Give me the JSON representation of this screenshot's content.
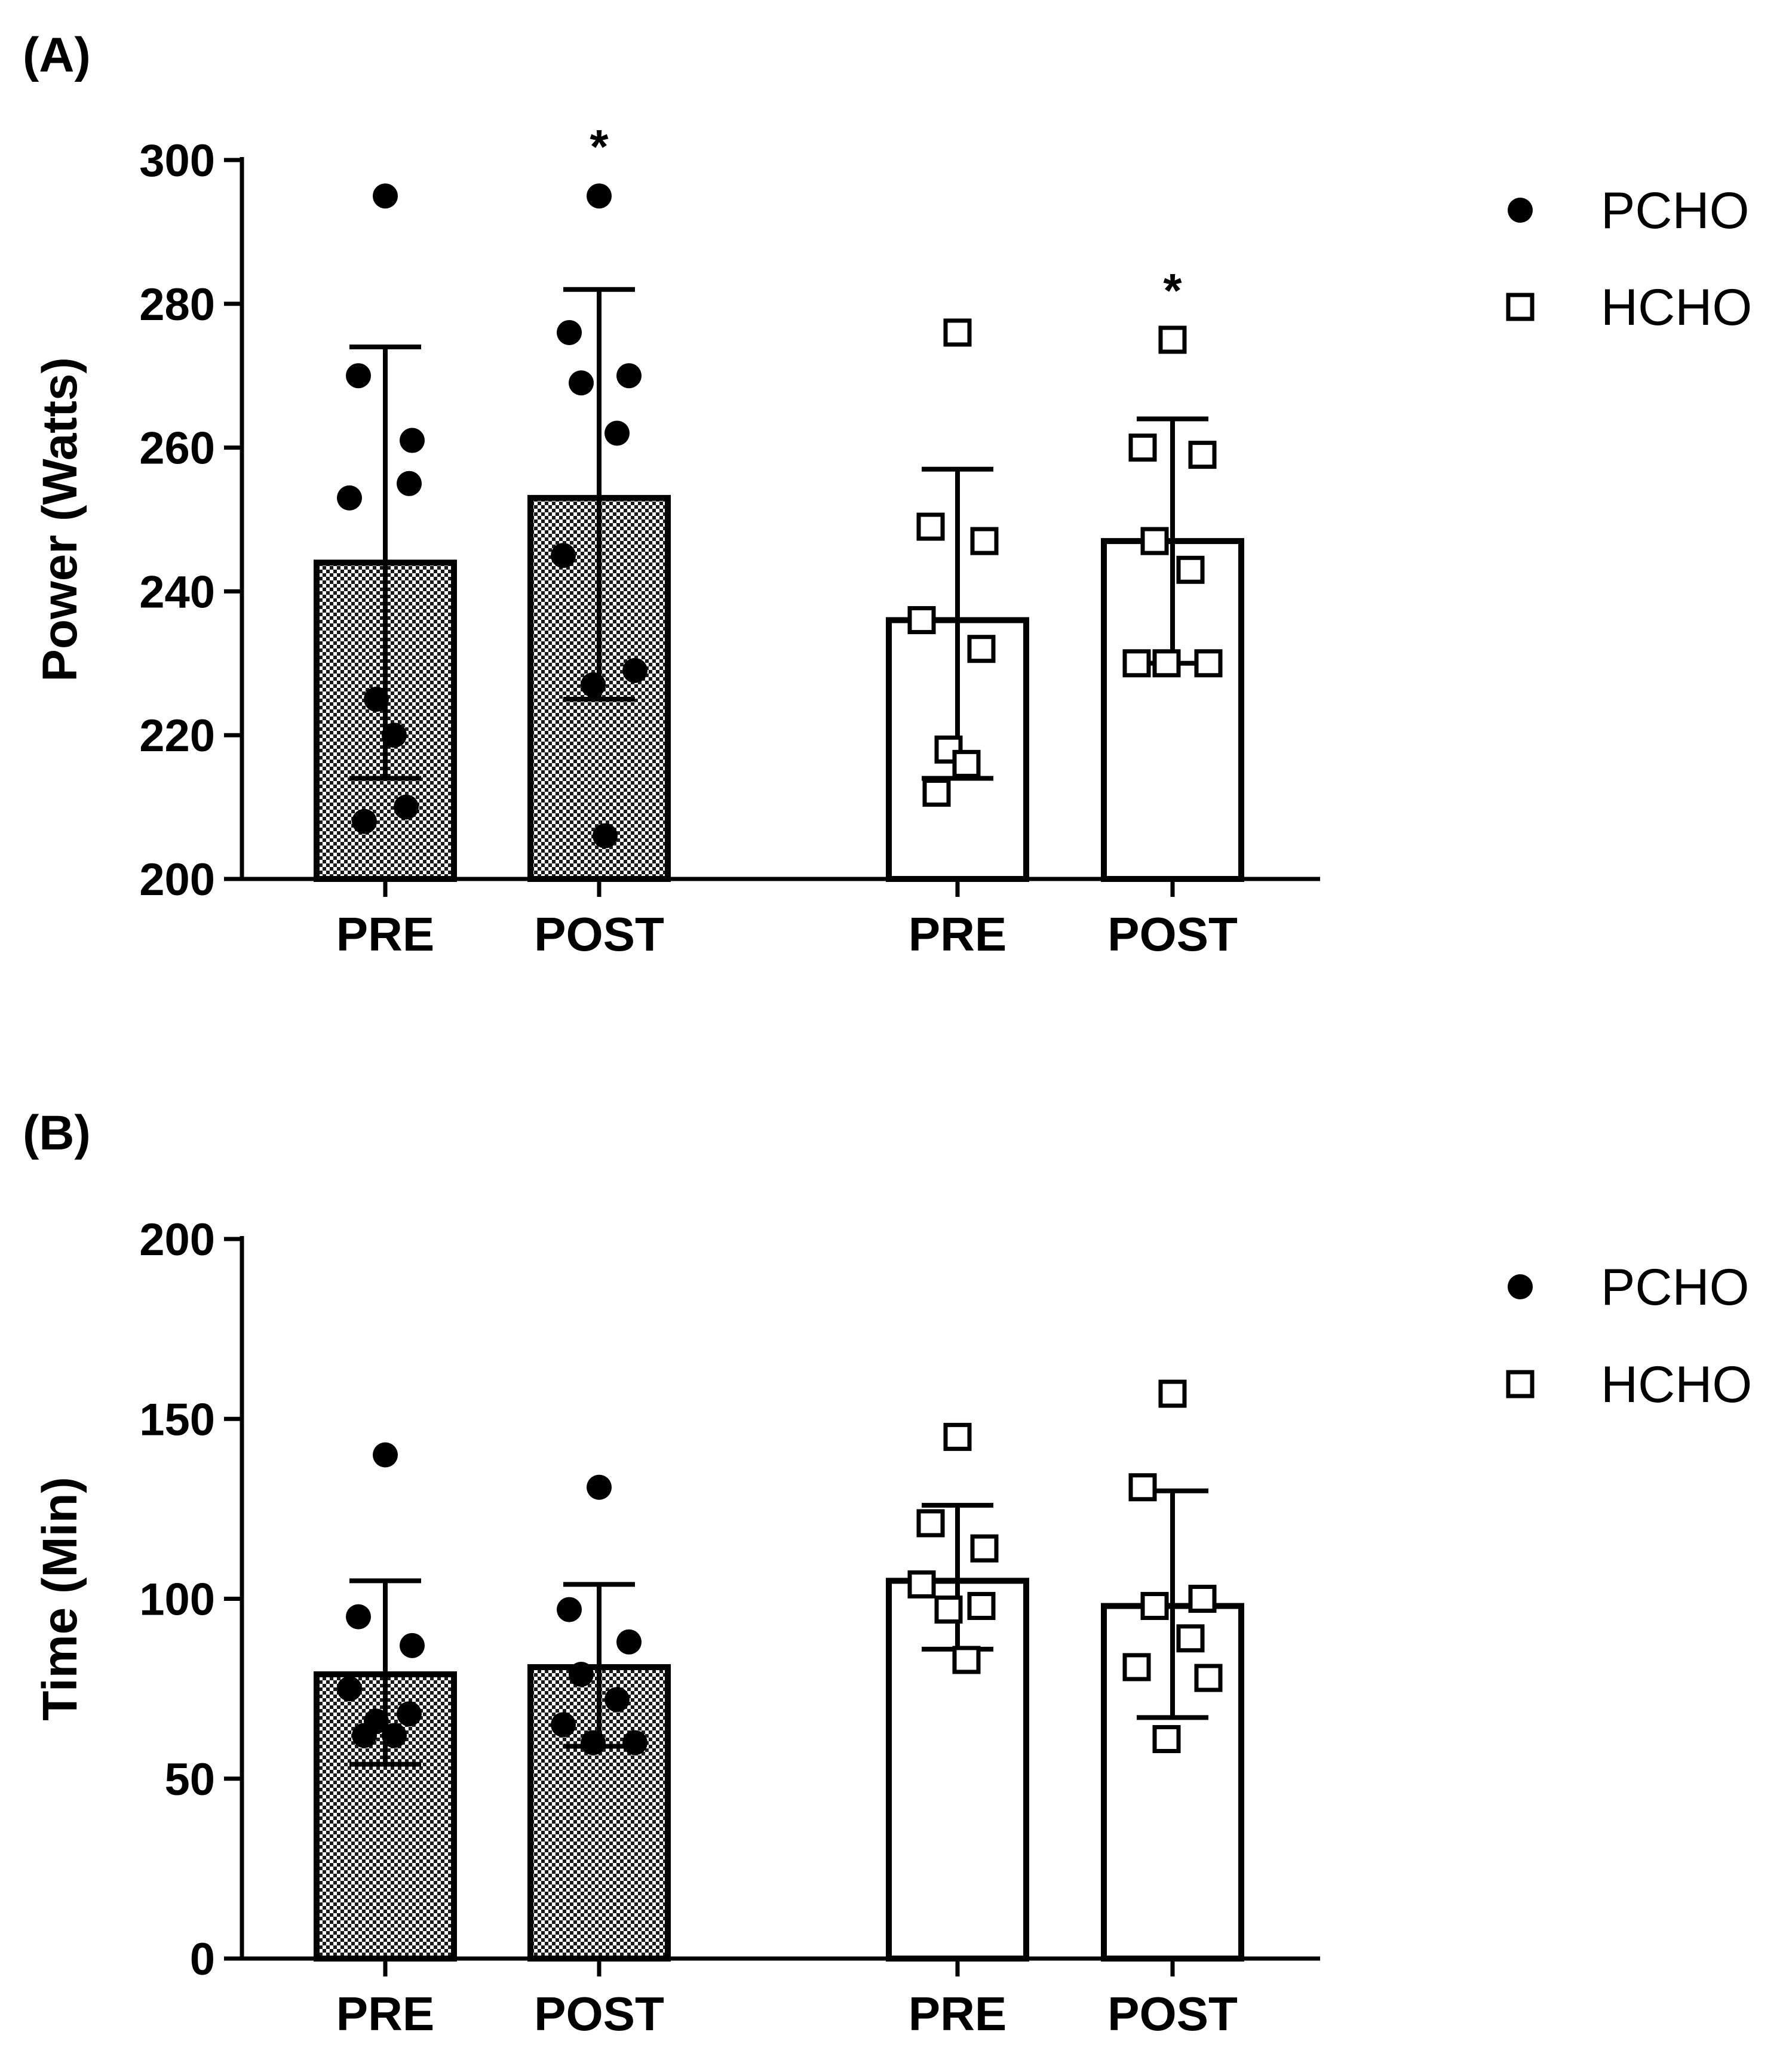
{
  "chart_data": [
    {
      "panel_label": "(A)",
      "type": "bar",
      "ylabel": "Power (Watts)",
      "ylim": [
        200,
        300
      ],
      "yticks": [
        "200",
        "220",
        "240",
        "260",
        "280",
        "300"
      ],
      "groups": [
        {
          "name": "PCHO",
          "categories": [
            "PRE",
            "POST"
          ]
        },
        {
          "name": "HCHO",
          "categories": [
            "PRE",
            "POST"
          ]
        }
      ],
      "legend": [
        {
          "label": "PCHO",
          "marker": "filled-circle"
        },
        {
          "label": "HCHO",
          "marker": "open-square"
        }
      ],
      "series": [
        {
          "name": "PCHO",
          "condition": "PRE",
          "mean": 244,
          "sd_low": 214,
          "sd_high": 274,
          "points": [
            295,
            270,
            261,
            253,
            255,
            225,
            220,
            208,
            210
          ],
          "significance": ""
        },
        {
          "name": "PCHO",
          "condition": "POST",
          "mean": 253,
          "sd_low": 225,
          "sd_high": 282,
          "points": [
            295,
            276,
            270,
            269,
            262,
            245,
            229,
            227,
            206
          ],
          "significance": "*"
        },
        {
          "name": "HCHO",
          "condition": "PRE",
          "mean": 236,
          "sd_low": 214,
          "sd_high": 257,
          "points": [
            276,
            249,
            247,
            236,
            232,
            218,
            216,
            212
          ],
          "significance": ""
        },
        {
          "name": "HCHO",
          "condition": "POST",
          "mean": 247,
          "sd_low": 230,
          "sd_high": 264,
          "points": [
            275,
            260,
            259,
            247,
            243,
            230,
            230,
            230
          ],
          "significance": "*"
        }
      ]
    },
    {
      "panel_label": "(B)",
      "type": "bar",
      "ylabel": "Time (Min)",
      "ylim": [
        0,
        200
      ],
      "yticks": [
        "0",
        "50",
        "100",
        "150",
        "200"
      ],
      "groups": [
        {
          "name": "PCHO",
          "categories": [
            "PRE",
            "POST"
          ]
        },
        {
          "name": "HCHO",
          "categories": [
            "PRE",
            "POST"
          ]
        }
      ],
      "legend": [
        {
          "label": "PCHO",
          "marker": "filled-circle"
        },
        {
          "label": "HCHO",
          "marker": "open-square"
        }
      ],
      "series": [
        {
          "name": "PCHO",
          "condition": "PRE",
          "mean": 79,
          "sd_low": 54,
          "sd_high": 105,
          "points": [
            140,
            95,
            87,
            75,
            68,
            66,
            62,
            62
          ],
          "significance": ""
        },
        {
          "name": "PCHO",
          "condition": "POST",
          "mean": 81,
          "sd_low": 59,
          "sd_high": 104,
          "points": [
            131,
            97,
            88,
            79,
            72,
            65,
            60,
            60
          ],
          "significance": ""
        },
        {
          "name": "HCHO",
          "condition": "PRE",
          "mean": 105,
          "sd_low": 86,
          "sd_high": 126,
          "points": [
            145,
            121,
            114,
            104,
            98,
            97,
            83
          ],
          "significance": ""
        },
        {
          "name": "HCHO",
          "condition": "POST",
          "mean": 98,
          "sd_low": 67,
          "sd_high": 130,
          "points": [
            157,
            131,
            100,
            98,
            89,
            81,
            78,
            61
          ],
          "significance": ""
        }
      ]
    }
  ]
}
